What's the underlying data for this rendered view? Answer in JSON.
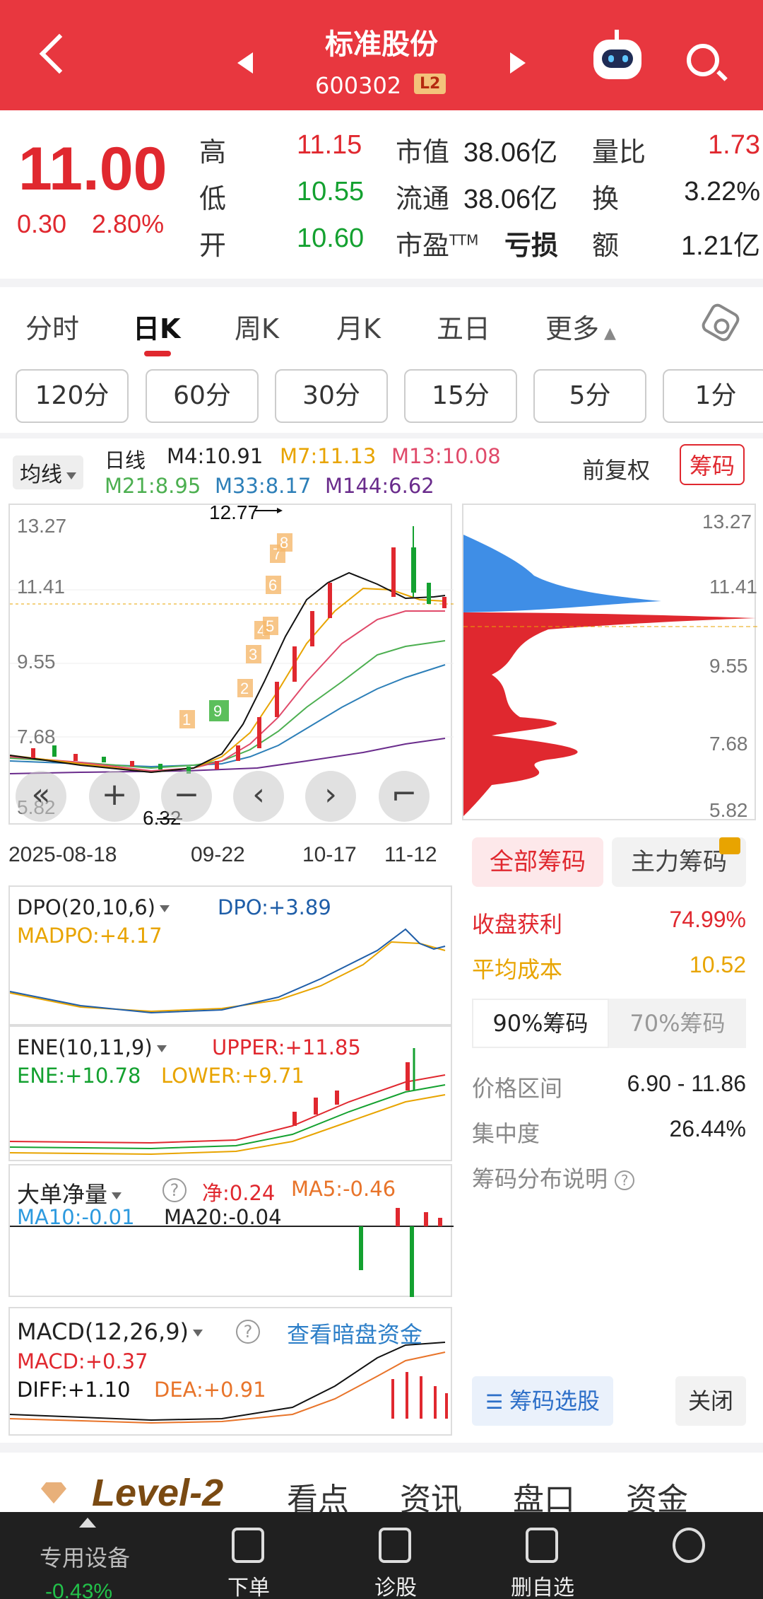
{
  "header": {
    "title": "标准股份",
    "code": "600302",
    "badge": "L2"
  },
  "quote": {
    "price": "11.00",
    "change": "0.30",
    "change_pct": "2.80%",
    "rows": [
      {
        "l1": "高",
        "v1": "11.15",
        "l2": "市值",
        "v2": "38.06亿",
        "l3": "量比",
        "v3": "1.73"
      },
      {
        "l1": "低",
        "v1": "10.55",
        "l2": "流通",
        "v2": "38.06亿",
        "l3": "换",
        "v3": "3.22%"
      },
      {
        "l1": "开",
        "v1": "10.60",
        "l2": "市盈",
        "l2sup": "TTM",
        "v2": "亏损",
        "l3": "额",
        "v3": "1.21亿"
      }
    ]
  },
  "tabs": [
    "分时",
    "日K",
    "周K",
    "月K",
    "五日",
    "更多"
  ],
  "minute_buttons": [
    "120分",
    "60分",
    "30分",
    "15分",
    "5分",
    "1分"
  ],
  "kchart": {
    "indicator_select": "均线",
    "title": "日线",
    "ma": {
      "m4": "M4:10.91",
      "m7": "M7:11.13",
      "m13": "M13:10.08",
      "m21": "M21:8.95",
      "m33": "M33:8.17",
      "m144": "M144:6.62"
    },
    "adjust": "前复权",
    "chips_button": "筹码",
    "y_labels": [
      "13.27",
      "11.41",
      "9.55",
      "7.68",
      "5.82"
    ],
    "x_labels": [
      "2025-08-18",
      "09-22",
      "10-17",
      "11-12"
    ],
    "high_mark": "12.77",
    "low_mark": "6.32",
    "td_seq": [
      "1",
      "2",
      "3",
      "4",
      "5",
      "6",
      "7",
      "8",
      "9"
    ]
  },
  "chart_data": {
    "type": "candlestick",
    "x": [
      "2025-08-18",
      "09-22",
      "10-17",
      "11-12"
    ],
    "ylim": [
      5.82,
      13.27
    ],
    "last": {
      "open": 10.6,
      "high": 11.15,
      "low": 10.55,
      "close": 11.0
    },
    "period_high": 12.77,
    "period_low": 6.32
  },
  "dpo": {
    "name": "DPO(20,10,6)",
    "dpo": "DPO:+3.89",
    "madpo": "MADPO:+4.17"
  },
  "ene": {
    "name": "ENE(10,11,9)",
    "upper": "UPPER:+11.85",
    "ene": "ENE:+10.78",
    "lower": "LOWER:+9.71"
  },
  "bigorder": {
    "name": "大单净量",
    "net": "净:0.24",
    "ma5": "MA5:-0.46",
    "ma10": "MA10:-0.01",
    "ma20": "MA20:-0.04"
  },
  "macd": {
    "name": "MACD(12,26,9)",
    "link": "查看暗盘资金",
    "macd": "MACD:+0.37",
    "diff": "DIFF:+1.10",
    "dea": "DEA:+0.91"
  },
  "chips": {
    "y_labels": [
      "13.27",
      "11.41",
      "9.55",
      "7.68",
      "5.82"
    ],
    "tab_all": "全部筹码",
    "tab_main": "主力筹码",
    "profit_label": "收盘获利",
    "profit": "74.99%",
    "avg_label": "平均成本",
    "avg": "10.52",
    "pct90": "90%筹码",
    "pct70": "70%筹码",
    "range_label": "价格区间",
    "range": "6.90 - 11.86",
    "conc_label": "集中度",
    "conc": "26.44%",
    "help": "筹码分布说明",
    "select_btn": "筹码选股",
    "close_btn": "关闭"
  },
  "bottom_tabs": {
    "level2": "Level-2",
    "items": [
      "看点",
      "资讯",
      "盘口",
      "资金"
    ]
  },
  "nav": {
    "left_label": "专用设备",
    "left_value": "-0.43%",
    "items": [
      "下单",
      "诊股",
      "删自选",
      ""
    ]
  }
}
